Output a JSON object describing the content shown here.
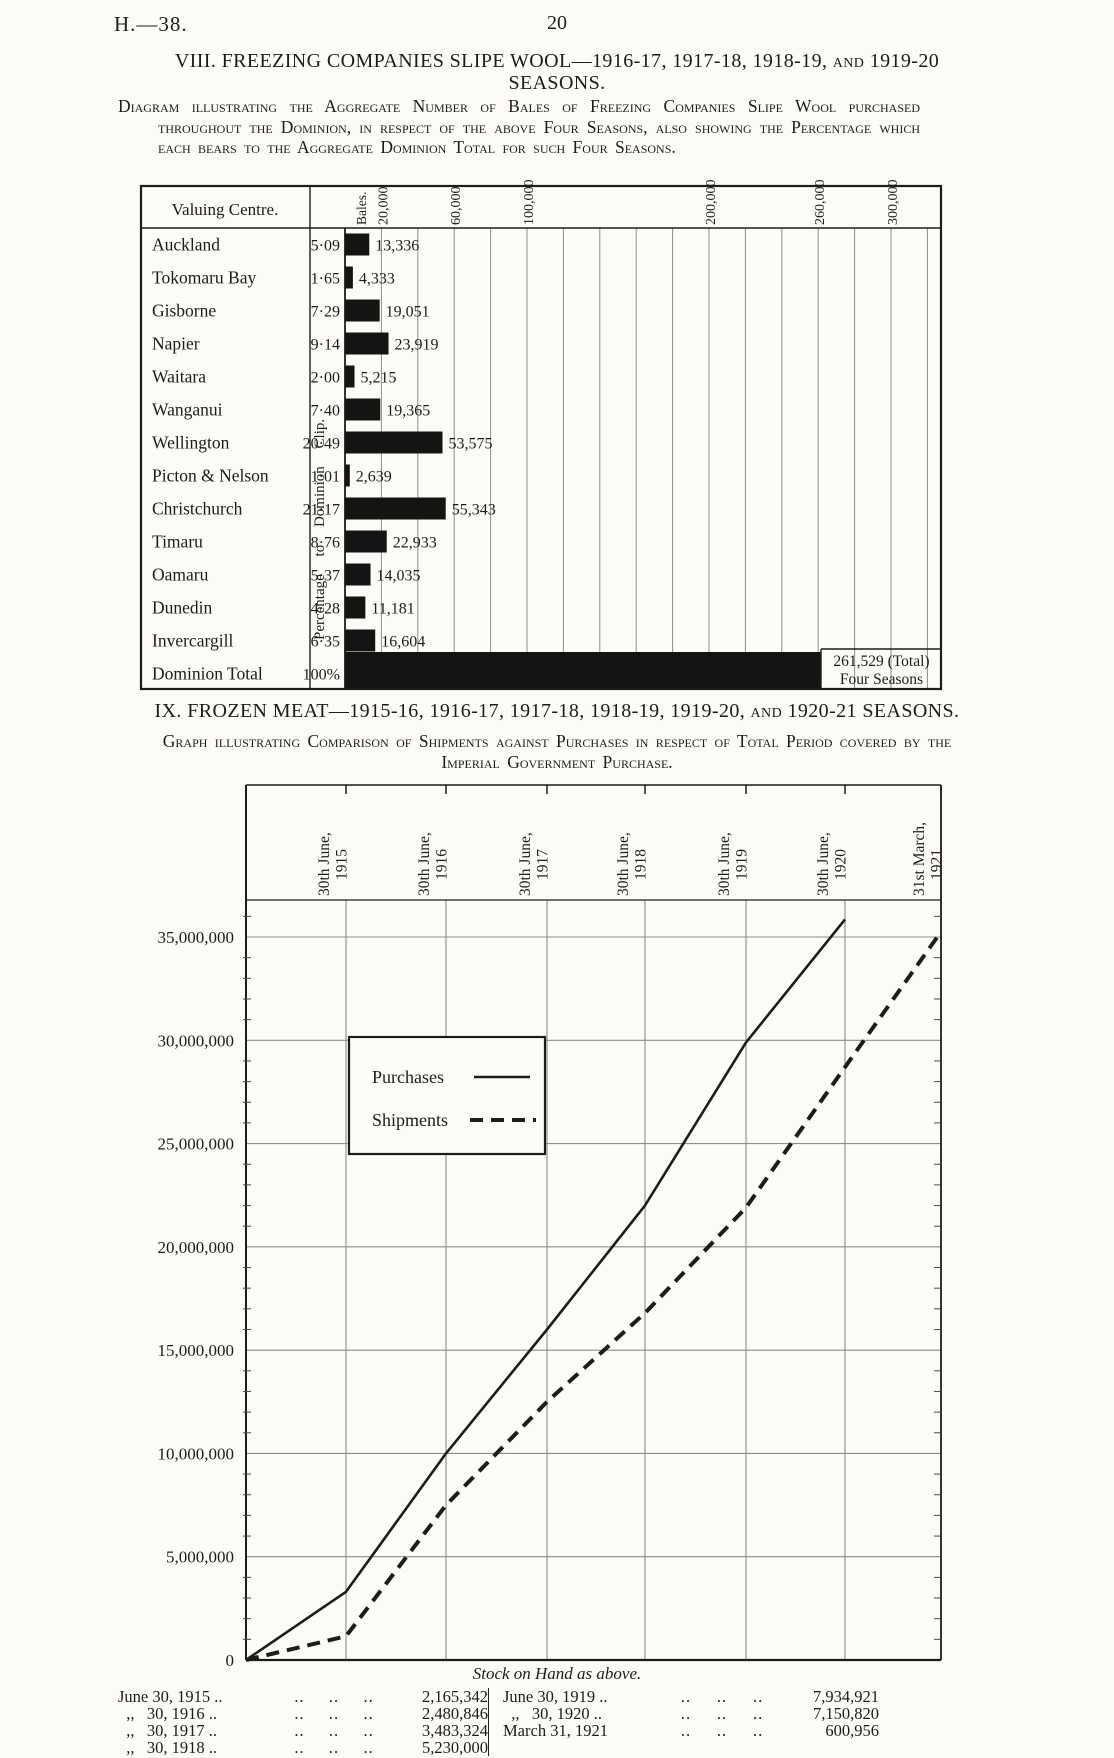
{
  "header": {
    "doc_ref": "H.—38.",
    "page_number": "20"
  },
  "section_viii": {
    "title": "VIII. FREEZING COMPANIES SLIPE WOOL—1916-17, 1917-18, 1918-19, and 1919-20 SEASONS.",
    "subtitle": "Diagram illustrating the Aggregate Number of Bales of Freezing Companies Slipe Wool purchased throughout the Dominion, in respect of the above Four Seasons, also showing the Percentage which each bears to the Aggregate Dominion Total for such Four Seasons."
  },
  "section_ix": {
    "title": "IX. FROZEN MEAT—1915-16, 1916-17, 1917-18, 1918-19, 1919-20, and 1920-21 SEASONS.",
    "subtitle": "Graph illustrating Comparison of Shipments against Purchases in respect of Total Period covered by the Imperial Government Purchase."
  },
  "chart_data": [
    {
      "type": "bar",
      "name": "freezing-companies-slipe-wool-bales",
      "orientation": "horizontal",
      "col_header": "Valuing Centre.",
      "unit_label": "Bales.",
      "side_caption": "Percentage to Dominion Clip.",
      "grid_step": 20000,
      "xlim": [
        0,
        328000
      ],
      "axis_ticks": [
        {
          "value": 20000,
          "label": "20,000"
        },
        {
          "value": 60000,
          "label": "60,000"
        },
        {
          "value": 100000,
          "label": "100,000"
        },
        {
          "value": 200000,
          "label": "200,000"
        },
        {
          "value": 260000,
          "label": "260,000"
        },
        {
          "value": 300000,
          "label": "300,000"
        }
      ],
      "rows": [
        {
          "centre": "Auckland",
          "pct": "5·09",
          "bales": 13336,
          "bales_label": "13,336"
        },
        {
          "centre": "Tokomaru Bay",
          "pct": "1·65",
          "bales": 4333,
          "bales_label": "4,333"
        },
        {
          "centre": "Gisborne",
          "pct": "7·29",
          "bales": 19051,
          "bales_label": "19,051"
        },
        {
          "centre": "Napier",
          "pct": "9·14",
          "bales": 23919,
          "bales_label": "23,919"
        },
        {
          "centre": "Waitara",
          "pct": "2·00",
          "bales": 5215,
          "bales_label": "5,215"
        },
        {
          "centre": "Wanganui",
          "pct": "7·40",
          "bales": 19365,
          "bales_label": "19,365"
        },
        {
          "centre": "Wellington",
          "pct": "20·49",
          "bales": 53575,
          "bales_label": "53,575"
        },
        {
          "centre": "Picton & Nelson",
          "pct": "1·01",
          "bales": 2639,
          "bales_label": "2,639"
        },
        {
          "centre": "Christchurch",
          "pct": "21·17",
          "bales": 55343,
          "bales_label": "55,343"
        },
        {
          "centre": "Timaru",
          "pct": "8·76",
          "bales": 22933,
          "bales_label": "22,933"
        },
        {
          "centre": "Oamaru",
          "pct": "5·37",
          "bales": 14035,
          "bales_label": "14,035"
        },
        {
          "centre": "Dunedin",
          "pct": "4·28",
          "bales": 11181,
          "bales_label": "11,181"
        },
        {
          "centre": "Invercargill",
          "pct": "6·35",
          "bales": 16604,
          "bales_label": "16,604"
        }
      ],
      "total_row": {
        "centre": "Dominion Total",
        "pct": "100%",
        "bales": 261529,
        "label_line1": "261,529 (Total)",
        "label_line2": "Four Seasons"
      }
    },
    {
      "type": "line",
      "name": "frozen-meat-purchases-vs-shipments",
      "x_unit": "date_index (0 = start of period, 1-7 = labelled axis dates)",
      "x_axis_dates": [
        {
          "line1": "30th June,",
          "line2": "1915"
        },
        {
          "line1": "30th June,",
          "line2": "1916"
        },
        {
          "line1": "30th June,",
          "line2": "1917"
        },
        {
          "line1": "30th June,",
          "line2": "1918"
        },
        {
          "line1": "30th June,",
          "line2": "1919"
        },
        {
          "line1": "30th June,",
          "line2": "1920"
        },
        {
          "line1": "31st March,",
          "line2": "1921"
        }
      ],
      "y_ticks": [
        "0",
        "5,000,000",
        "10,000,000",
        "15,000,000",
        "20,000,000",
        "25,000,000",
        "30,000,000",
        "35,000,000"
      ],
      "ylim": [
        0,
        37500000
      ],
      "grid": "on",
      "legend": {
        "position": "upper-left",
        "items": [
          {
            "label": "Purchases",
            "style": "solid"
          },
          {
            "label": "Shipments",
            "style": "dashed"
          }
        ]
      },
      "series": [
        {
          "name": "Purchases",
          "style": "solid",
          "points": [
            {
              "x": 0,
              "value": 0
            },
            {
              "x": 1,
              "value": 3300000
            },
            {
              "x": 2,
              "value": 10000000
            },
            {
              "x": 3,
              "value": 16000000
            },
            {
              "x": 4,
              "value": 22000000
            },
            {
              "x": 5,
              "value": 29900000
            },
            {
              "x": 6,
              "value": 35850000
            }
          ]
        },
        {
          "name": "Shipments",
          "style": "dashed",
          "points": [
            {
              "x": 0,
              "value": 0
            },
            {
              "x": 1,
              "value": 1150000
            },
            {
              "x": 2,
              "value": 7500000
            },
            {
              "x": 3,
              "value": 12500000
            },
            {
              "x": 4,
              "value": 16800000
            },
            {
              "x": 5,
              "value": 21900000
            },
            {
              "x": 6,
              "value": 28700000
            },
            {
              "x": 7,
              "value": 35250000
            }
          ]
        }
      ]
    }
  ],
  "stock_table": {
    "caption": "Stock on Hand as above.",
    "columns": [
      {
        "rows": [
          {
            "date": "June 30, 1915 ..",
            "value": "2,165,342"
          },
          {
            "date": "  ,,   30, 1916 ..",
            "value": "2,480,846"
          },
          {
            "date": "  ,,   30, 1917 ..",
            "value": "3,483,324"
          },
          {
            "date": "  ,,   30, 1918 ..",
            "value": "5,230,000"
          }
        ]
      },
      {
        "rows": [
          {
            "date": "June 30, 1919 ..",
            "value": "7,934,921"
          },
          {
            "date": "  ,,   30, 1920 ..",
            "value": "7,150,820"
          },
          {
            "date": "March 31, 1921",
            "value": "600,956"
          }
        ]
      }
    ]
  },
  "colors": {
    "ink": "#1e1c19",
    "paper": "#fcfbf7",
    "grid": "#8d8d8a",
    "bar_fill": "#161412"
  }
}
